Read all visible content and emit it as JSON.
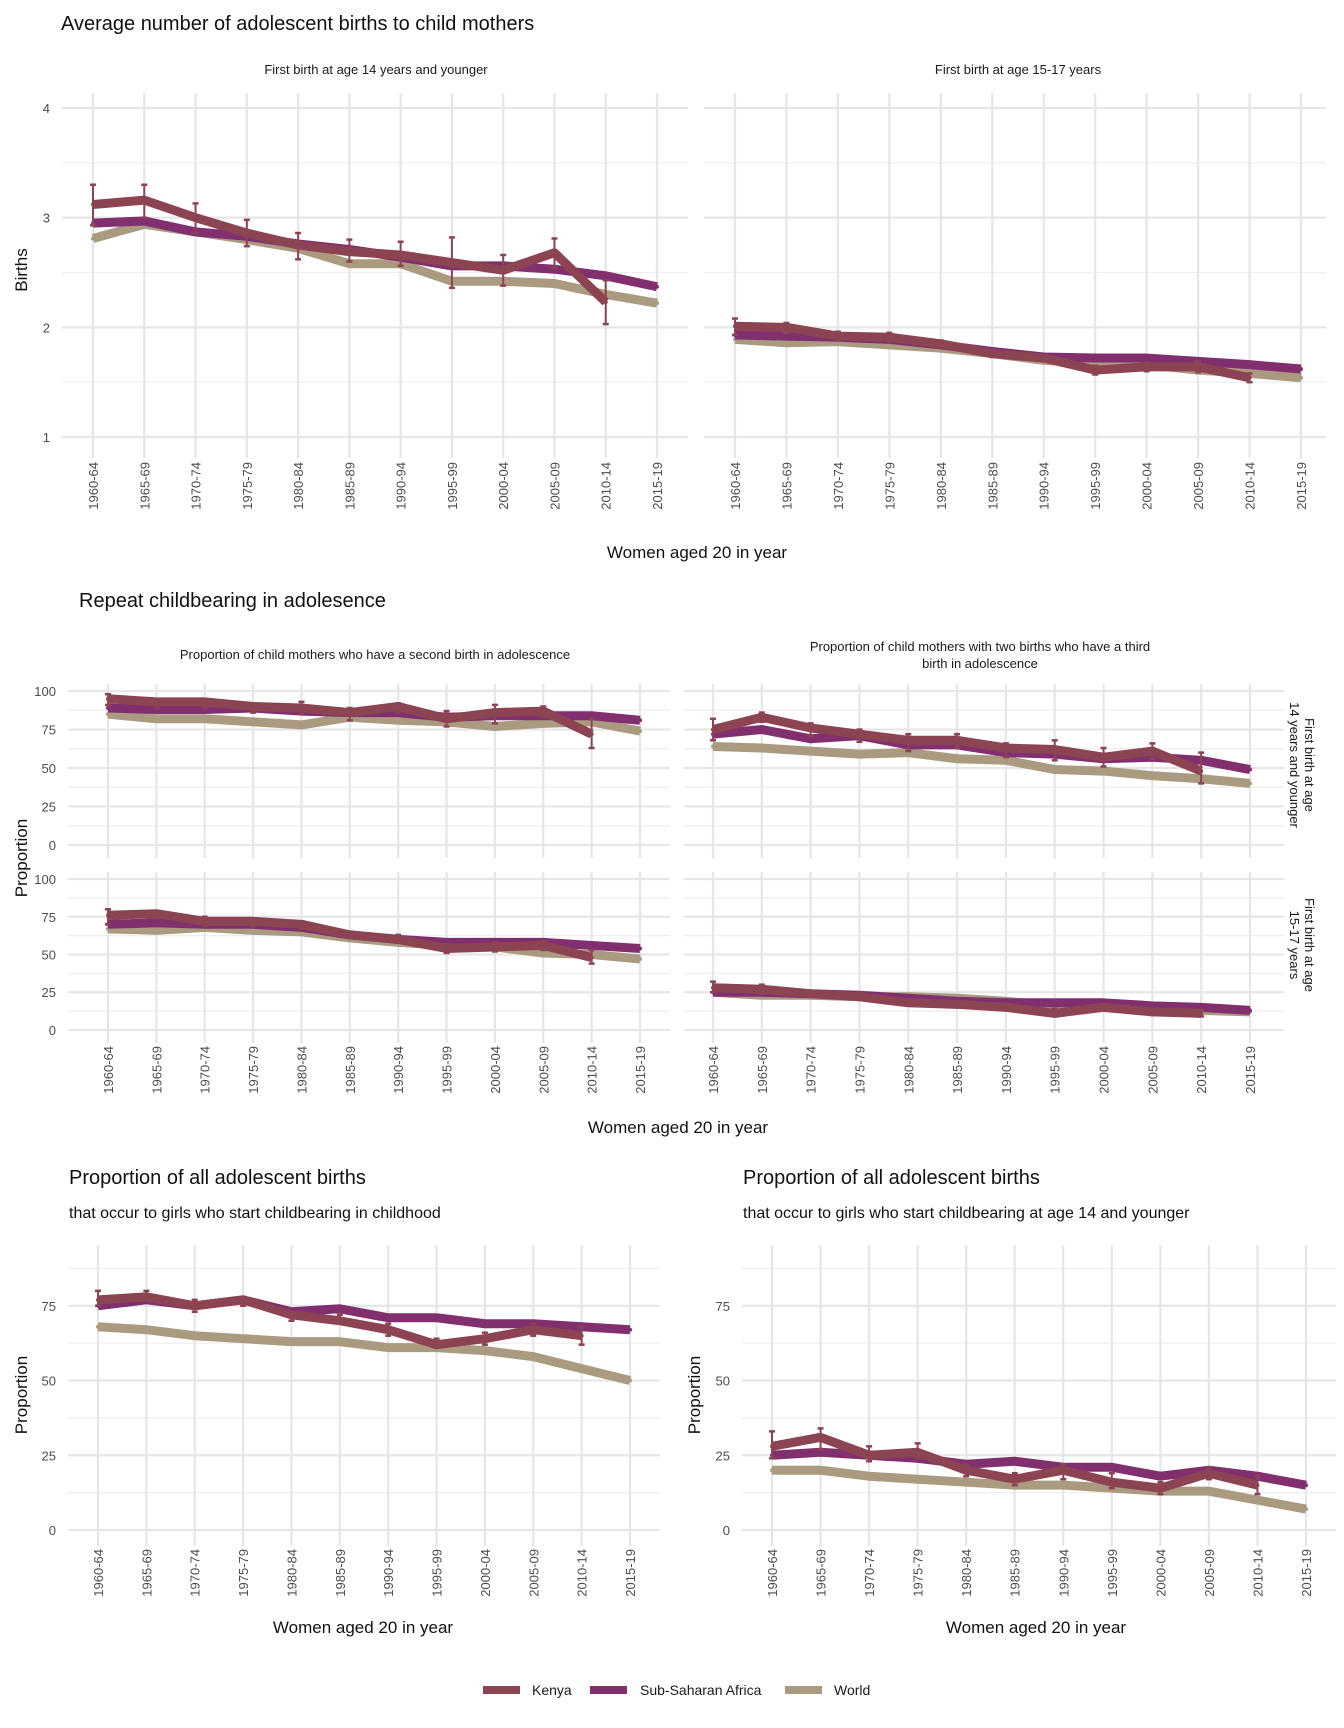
{
  "colors": {
    "Kenya": "#8c4452",
    "Sub-Saharan Africa": "#812f6f",
    "World": "#a99a80"
  },
  "categories": [
    "1960-64",
    "1965-69",
    "1970-74",
    "1975-79",
    "1980-84",
    "1985-89",
    "1990-94",
    "1995-99",
    "2000-04",
    "2005-09",
    "2010-14",
    "2015-19"
  ],
  "legend": {
    "items": [
      "Kenya",
      "Sub-Saharan Africa",
      "World"
    ]
  },
  "section1": {
    "title": "Average number of adolescent births to child mothers",
    "ylabel": "Births",
    "xlabel": "Women aged 20 in year",
    "panels": [
      {
        "strip": "First birth at age 14 years and younger"
      },
      {
        "strip": "First birth at age 15-17 years"
      }
    ]
  },
  "section2": {
    "title": "Repeat childbearing in adolesence",
    "ylabel": "Proportion",
    "xlabel": "Women aged 20 in year",
    "col_strips": [
      "Proportion of child mothers who have a second birth in adolescence",
      "Proportion of child mothers with two births who have a third birth in adolescence"
    ],
    "row_strips": [
      "First birth at age 14 years and younger",
      "First birth at age 15-17 years"
    ]
  },
  "section3": {
    "panels": [
      {
        "title": "Proportion of all adolescent births",
        "subtitle": "that occur to girls who start childbearing in childhood",
        "ylabel": "Proportion",
        "xlabel": "Women aged 20 in year"
      },
      {
        "title": "Proportion of all adolescent births",
        "subtitle": "that occur to girls who start childbearing at age 14 and younger",
        "ylabel": "Proportion",
        "xlabel": "Women aged 20 in year"
      }
    ]
  },
  "chart_data": [
    {
      "type": "line",
      "title": "Average number of adolescent births to child mothers",
      "subtitle": "First birth at age 14 years and younger",
      "xlabel": "Women aged 20 in year",
      "ylabel": "Births",
      "ylim": [
        0.9,
        4.1
      ],
      "yticks": [
        1,
        2,
        3,
        4
      ],
      "grid": true,
      "legend": "bottom",
      "x": [
        "1960-64",
        "1965-69",
        "1970-74",
        "1975-79",
        "1980-84",
        "1985-89",
        "1990-94",
        "1995-99",
        "2000-04",
        "2005-09",
        "2010-14",
        "2015-19"
      ],
      "series": [
        {
          "name": "Kenya",
          "values": [
            3.12,
            3.16,
            3.0,
            2.86,
            2.75,
            2.69,
            2.66,
            2.59,
            2.52,
            2.68,
            2.23,
            null
          ],
          "err_low": [
            2.93,
            3.0,
            2.86,
            2.74,
            2.62,
            2.6,
            2.56,
            2.36,
            2.38,
            2.54,
            2.03,
            null
          ],
          "err_high": [
            3.3,
            3.3,
            3.13,
            2.98,
            2.86,
            2.8,
            2.78,
            2.82,
            2.66,
            2.81,
            2.43,
            null
          ]
        },
        {
          "name": "Sub-Saharan Africa",
          "values": [
            2.95,
            2.97,
            2.87,
            2.83,
            2.76,
            2.71,
            2.64,
            2.56,
            2.56,
            2.53,
            2.47,
            2.37
          ]
        },
        {
          "name": "World",
          "values": [
            2.81,
            2.94,
            2.87,
            2.8,
            2.72,
            2.58,
            2.58,
            2.42,
            2.42,
            2.4,
            2.3,
            2.22
          ]
        }
      ]
    },
    {
      "type": "line",
      "title": "Average number of adolescent births to child mothers",
      "subtitle": "First birth at age 15-17 years",
      "xlabel": "Women aged 20 in year",
      "ylabel": "Births",
      "ylim": [
        0.9,
        4.1
      ],
      "yticks": [
        1,
        2,
        3,
        4
      ],
      "grid": true,
      "legend": "bottom",
      "x": [
        "1960-64",
        "1965-69",
        "1970-74",
        "1975-79",
        "1980-84",
        "1985-89",
        "1990-94",
        "1995-99",
        "2000-04",
        "2005-09",
        "2010-14",
        "2015-19"
      ],
      "series": [
        {
          "name": "Kenya",
          "values": [
            2.01,
            2.0,
            1.92,
            1.91,
            1.85,
            1.76,
            1.72,
            1.61,
            1.64,
            1.64,
            1.54,
            null
          ],
          "err_low": [
            1.93,
            1.95,
            1.88,
            1.87,
            1.82,
            1.73,
            1.69,
            1.57,
            1.6,
            1.59,
            1.5,
            null
          ],
          "err_high": [
            2.08,
            2.04,
            1.96,
            1.95,
            1.88,
            1.79,
            1.75,
            1.65,
            1.68,
            1.69,
            1.58,
            null
          ]
        },
        {
          "name": "Sub-Saharan Africa",
          "values": [
            1.93,
            1.92,
            1.91,
            1.89,
            1.84,
            1.78,
            1.73,
            1.72,
            1.72,
            1.69,
            1.66,
            1.62
          ]
        },
        {
          "name": "World",
          "values": [
            1.89,
            1.86,
            1.87,
            1.84,
            1.81,
            1.76,
            1.7,
            1.67,
            1.66,
            1.61,
            1.58,
            1.54
          ]
        }
      ]
    },
    {
      "type": "line",
      "title": "Repeat childbearing in adolesence",
      "subtitle": "Proportion of child mothers who have a second birth in adolescence — First birth at age 14 years and younger",
      "xlabel": "Women aged 20 in year",
      "ylabel": "Proportion",
      "ylim": [
        -2,
        102
      ],
      "yticks": [
        0,
        25,
        50,
        75,
        100
      ],
      "grid": true,
      "x": [
        "1960-64",
        "1965-69",
        "1970-74",
        "1975-79",
        "1980-84",
        "1985-89",
        "1990-94",
        "1995-99",
        "2000-04",
        "2005-09",
        "2010-14",
        "2015-19"
      ],
      "series": [
        {
          "name": "Kenya",
          "values": [
            95,
            93,
            93,
            90,
            89,
            86,
            90,
            82,
            86,
            87,
            72,
            null
          ],
          "err_low": [
            91,
            89,
            89,
            86,
            85,
            81,
            86,
            77,
            79,
            83,
            63,
            null
          ],
          "err_high": [
            98,
            95,
            95,
            92,
            93,
            89,
            92,
            87,
            91,
            90,
            82,
            null
          ]
        },
        {
          "name": "Sub-Saharan Africa",
          "values": [
            89,
            88,
            88,
            89,
            87,
            86,
            86,
            83,
            84,
            84,
            84,
            81
          ]
        },
        {
          "name": "World",
          "values": [
            85,
            82,
            82,
            80,
            78,
            83,
            81,
            80,
            77,
            79,
            80,
            74
          ]
        }
      ]
    },
    {
      "type": "line",
      "title": "Repeat childbearing in adolesence",
      "subtitle": "Proportion of child mothers with two births who have a third birth in adolescence — First birth at age 14 years and younger",
      "xlabel": "Women aged 20 in year",
      "ylabel": "Proportion",
      "ylim": [
        -2,
        102
      ],
      "yticks": [
        0,
        25,
        50,
        75,
        100
      ],
      "grid": true,
      "x": [
        "1960-64",
        "1965-69",
        "1970-74",
        "1975-79",
        "1980-84",
        "1985-89",
        "1990-94",
        "1995-99",
        "2000-04",
        "2005-09",
        "2010-14",
        "2015-19"
      ],
      "series": [
        {
          "name": "Kenya",
          "values": [
            75,
            83,
            76,
            72,
            68,
            68,
            63,
            62,
            57,
            61,
            48,
            null
          ],
          "err_low": [
            68,
            80,
            71,
            67,
            61,
            63,
            57,
            55,
            51,
            56,
            40,
            null
          ],
          "err_high": [
            82,
            86,
            79,
            75,
            72,
            72,
            66,
            68,
            63,
            66,
            60,
            null
          ]
        },
        {
          "name": "Sub-Saharan Africa",
          "values": [
            72,
            75,
            69,
            71,
            65,
            65,
            60,
            59,
            56,
            57,
            55,
            49
          ]
        },
        {
          "name": "World",
          "values": [
            64,
            63,
            61,
            59,
            60,
            56,
            55,
            49,
            48,
            45,
            43,
            40
          ]
        }
      ]
    },
    {
      "type": "line",
      "title": "Repeat childbearing in adolesence",
      "subtitle": "Proportion of child mothers who have a second birth in adolescence — First birth at age 15-17 years",
      "xlabel": "Women aged 20 in year",
      "ylabel": "Proportion",
      "ylim": [
        -2,
        102
      ],
      "yticks": [
        0,
        25,
        50,
        75,
        100
      ],
      "grid": true,
      "x": [
        "1960-64",
        "1965-69",
        "1970-74",
        "1975-79",
        "1980-84",
        "1985-89",
        "1990-94",
        "1995-99",
        "2000-04",
        "2005-09",
        "2010-14",
        "2015-19"
      ],
      "series": [
        {
          "name": "Kenya",
          "values": [
            76,
            77,
            72,
            72,
            70,
            63,
            60,
            54,
            55,
            56,
            48,
            null
          ],
          "err_low": [
            70,
            74,
            69,
            69,
            67,
            61,
            58,
            51,
            52,
            53,
            44,
            null
          ],
          "err_high": [
            80,
            79,
            75,
            74,
            72,
            65,
            63,
            57,
            58,
            59,
            53,
            null
          ]
        },
        {
          "name": "Sub-Saharan Africa",
          "values": [
            70,
            71,
            70,
            70,
            68,
            63,
            60,
            58,
            58,
            58,
            56,
            54
          ]
        },
        {
          "name": "World",
          "values": [
            67,
            66,
            68,
            66,
            65,
            61,
            58,
            56,
            55,
            51,
            50,
            47
          ]
        }
      ]
    },
    {
      "type": "line",
      "title": "Repeat childbearing in adolesence",
      "subtitle": "Proportion of child mothers with two births who have a third birth in adolescence — First birth at age 15-17 years",
      "xlabel": "Women aged 20 in year",
      "ylabel": "Proportion",
      "ylim": [
        -2,
        102
      ],
      "yticks": [
        0,
        25,
        50,
        75,
        100
      ],
      "grid": true,
      "x": [
        "1960-64",
        "1965-69",
        "1970-74",
        "1975-79",
        "1980-84",
        "1985-89",
        "1990-94",
        "1995-99",
        "2000-04",
        "2005-09",
        "2010-14",
        "2015-19"
      ],
      "series": [
        {
          "name": "Kenya",
          "values": [
            28,
            27,
            24,
            22,
            18,
            17,
            15,
            11,
            15,
            12,
            11,
            null
          ],
          "err_low": [
            25,
            24,
            22,
            20,
            17,
            15,
            13,
            9,
            13,
            10,
            9,
            null
          ],
          "err_high": [
            32,
            30,
            26,
            25,
            20,
            19,
            17,
            14,
            17,
            14,
            13,
            null
          ]
        },
        {
          "name": "Sub-Saharan Africa",
          "values": [
            25,
            25,
            24,
            23,
            21,
            19,
            18,
            18,
            18,
            16,
            15,
            13
          ]
        },
        {
          "name": "World",
          "values": [
            25,
            23,
            23,
            22,
            22,
            21,
            19,
            16,
            15,
            14,
            13,
            12
          ]
        }
      ]
    },
    {
      "type": "line",
      "title": "Proportion of all adolescent births",
      "subtitle": "that occur to girls who start childbearing in childhood",
      "xlabel": "Women aged 20 in year",
      "ylabel": "Proportion",
      "ylim": [
        -2,
        94
      ],
      "yticks": [
        0,
        25,
        50,
        75
      ],
      "grid": true,
      "x": [
        "1960-64",
        "1965-69",
        "1970-74",
        "1975-79",
        "1980-84",
        "1985-89",
        "1990-94",
        "1995-99",
        "2000-04",
        "2005-09",
        "2010-14",
        "2015-19"
      ],
      "series": [
        {
          "name": "Kenya",
          "values": [
            77,
            78,
            75,
            77,
            72,
            70,
            67,
            62,
            64,
            67,
            65,
            null
          ],
          "err_low": [
            75,
            77,
            73,
            75,
            70,
            69,
            65,
            61,
            62,
            65,
            62,
            null
          ],
          "err_high": [
            80,
            80,
            77,
            78,
            73,
            72,
            69,
            64,
            66,
            69,
            68,
            null
          ]
        },
        {
          "name": "Sub-Saharan Africa",
          "values": [
            75,
            77,
            75,
            77,
            73,
            74,
            71,
            71,
            69,
            69,
            68,
            67
          ]
        },
        {
          "name": "World",
          "values": [
            68,
            67,
            65,
            64,
            63,
            63,
            61,
            61,
            60,
            58,
            54,
            50
          ]
        }
      ]
    },
    {
      "type": "line",
      "title": "Proportion of all adolescent births",
      "subtitle": "that occur to girls who start childbearing at age 14 and younger",
      "xlabel": "Women aged 20 in year",
      "ylabel": "Proportion",
      "ylim": [
        -2,
        94
      ],
      "yticks": [
        0,
        25,
        50,
        75
      ],
      "grid": true,
      "x": [
        "1960-64",
        "1965-69",
        "1970-74",
        "1975-79",
        "1980-84",
        "1985-89",
        "1990-94",
        "1995-99",
        "2000-04",
        "2005-09",
        "2010-14",
        "2015-19"
      ],
      "series": [
        {
          "name": "Kenya",
          "values": [
            28,
            31,
            25,
            26,
            20,
            17,
            20,
            16,
            14,
            19,
            15,
            null
          ],
          "err_low": [
            24,
            27,
            23,
            24,
            18,
            15,
            17,
            14,
            12,
            17,
            12,
            null
          ],
          "err_high": [
            33,
            34,
            28,
            29,
            22,
            19,
            22,
            19,
            16,
            21,
            18,
            null
          ]
        },
        {
          "name": "Sub-Saharan Africa",
          "values": [
            25,
            26,
            25,
            24,
            22,
            23,
            21,
            21,
            18,
            20,
            18,
            15
          ]
        },
        {
          "name": "World",
          "values": [
            20,
            20,
            18,
            17,
            16,
            15,
            15,
            14,
            13,
            13,
            10,
            7
          ]
        }
      ]
    }
  ]
}
